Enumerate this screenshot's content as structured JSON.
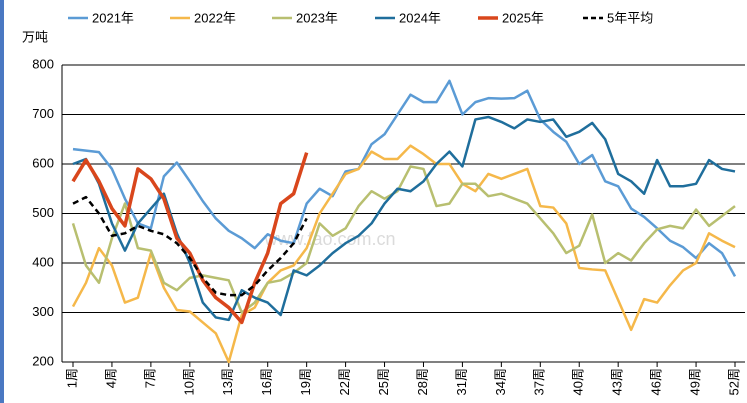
{
  "chart_data": {
    "type": "line",
    "y_unit_label": "万吨",
    "watermark": "www.fao.com.cn",
    "categories": [
      "1周",
      null,
      null,
      "4周",
      null,
      null,
      "7周",
      null,
      null,
      "10周",
      null,
      null,
      "13周",
      null,
      null,
      "16周",
      null,
      null,
      "19周",
      null,
      null,
      "22周",
      null,
      null,
      "25周",
      null,
      null,
      "28周",
      null,
      null,
      "31周",
      null,
      null,
      "34周",
      null,
      null,
      "37周",
      null,
      null,
      "40周",
      null,
      null,
      "43周",
      null,
      null,
      "46周",
      null,
      null,
      "49周",
      null,
      null,
      "52周"
    ],
    "ylim": [
      200,
      800
    ],
    "yticks": [
      200,
      300,
      400,
      500,
      600,
      700,
      800
    ],
    "grid": true,
    "legend": "top",
    "series": [
      {
        "name": "2021年",
        "color": "#5b9bd5",
        "width": 2.5,
        "dash": false,
        "values": [
          630,
          627,
          624,
          590,
          530,
          480,
          470,
          575,
          603,
          565,
          525,
          490,
          465,
          450,
          430,
          458,
          445,
          440,
          520,
          550,
          535,
          585,
          590,
          640,
          660,
          700,
          740,
          725,
          725,
          768,
          700,
          725,
          733,
          732,
          733,
          748,
          690,
          665,
          645,
          600,
          618,
          565,
          555,
          510,
          493,
          470,
          445,
          432,
          410,
          440,
          420,
          373
        ]
      },
      {
        "name": "2022年",
        "color": "#f5b84a",
        "width": 2.5,
        "dash": false,
        "values": [
          312,
          360,
          430,
          395,
          320,
          330,
          420,
          350,
          305,
          302,
          280,
          258,
          200,
          295,
          310,
          360,
          385,
          395,
          430,
          500,
          540,
          580,
          590,
          625,
          610,
          610,
          637,
          620,
          600,
          600,
          560,
          545,
          580,
          570,
          580,
          590,
          515,
          512,
          480,
          390,
          387,
          385,
          325,
          265,
          327,
          320,
          355,
          385,
          400,
          460,
          445,
          432
        ]
      },
      {
        "name": "2023年",
        "color": "#b8bf70",
        "width": 2.5,
        "dash": false,
        "values": [
          480,
          395,
          360,
          450,
          520,
          430,
          425,
          360,
          345,
          370,
          375,
          370,
          365,
          300,
          320,
          360,
          365,
          380,
          400,
          480,
          455,
          470,
          515,
          545,
          530,
          545,
          595,
          590,
          515,
          520,
          560,
          560,
          535,
          540,
          530,
          520,
          490,
          460,
          420,
          435,
          498,
          400,
          420,
          405,
          440,
          468,
          475,
          470,
          508,
          475,
          495,
          515
        ]
      },
      {
        "name": "2024年",
        "color": "#1f6e9c",
        "width": 2.5,
        "dash": false,
        "values": [
          600,
          610,
          560,
          480,
          425,
          480,
          510,
          540,
          460,
          400,
          320,
          290,
          285,
          345,
          330,
          320,
          295,
          385,
          375,
          395,
          420,
          440,
          455,
          480,
          520,
          550,
          545,
          565,
          600,
          625,
          595,
          690,
          695,
          685,
          672,
          690,
          685,
          690,
          655,
          665,
          683,
          650,
          580,
          565,
          540,
          608,
          555,
          555,
          560,
          608,
          590,
          585
        ]
      },
      {
        "name": "2025年",
        "color": "#d9461c",
        "width": 3.5,
        "dash": false,
        "values": [
          565,
          608,
          565,
          510,
          475,
          590,
          570,
          530,
          450,
          420,
          365,
          330,
          310,
          280,
          360,
          420,
          520,
          540,
          623,
          null,
          null,
          null,
          null,
          null,
          null,
          null,
          null,
          null,
          null,
          null,
          null,
          null,
          null,
          null,
          null,
          null,
          null,
          null,
          null,
          null,
          null,
          null,
          null,
          null,
          null,
          null,
          null,
          null,
          null,
          null,
          null,
          null
        ]
      },
      {
        "name": "5年平均",
        "color": "#000000",
        "width": 2.5,
        "dash": true,
        "values": [
          520,
          533,
          500,
          455,
          460,
          475,
          465,
          458,
          440,
          410,
          370,
          340,
          335,
          335,
          355,
          385,
          410,
          440,
          490,
          null,
          null,
          null,
          null,
          null,
          null,
          null,
          null,
          null,
          null,
          null,
          null,
          null,
          null,
          null,
          null,
          null,
          null,
          null,
          null,
          null,
          null,
          null,
          null,
          null,
          null,
          null,
          null,
          null,
          null,
          null,
          null,
          null
        ]
      }
    ]
  }
}
